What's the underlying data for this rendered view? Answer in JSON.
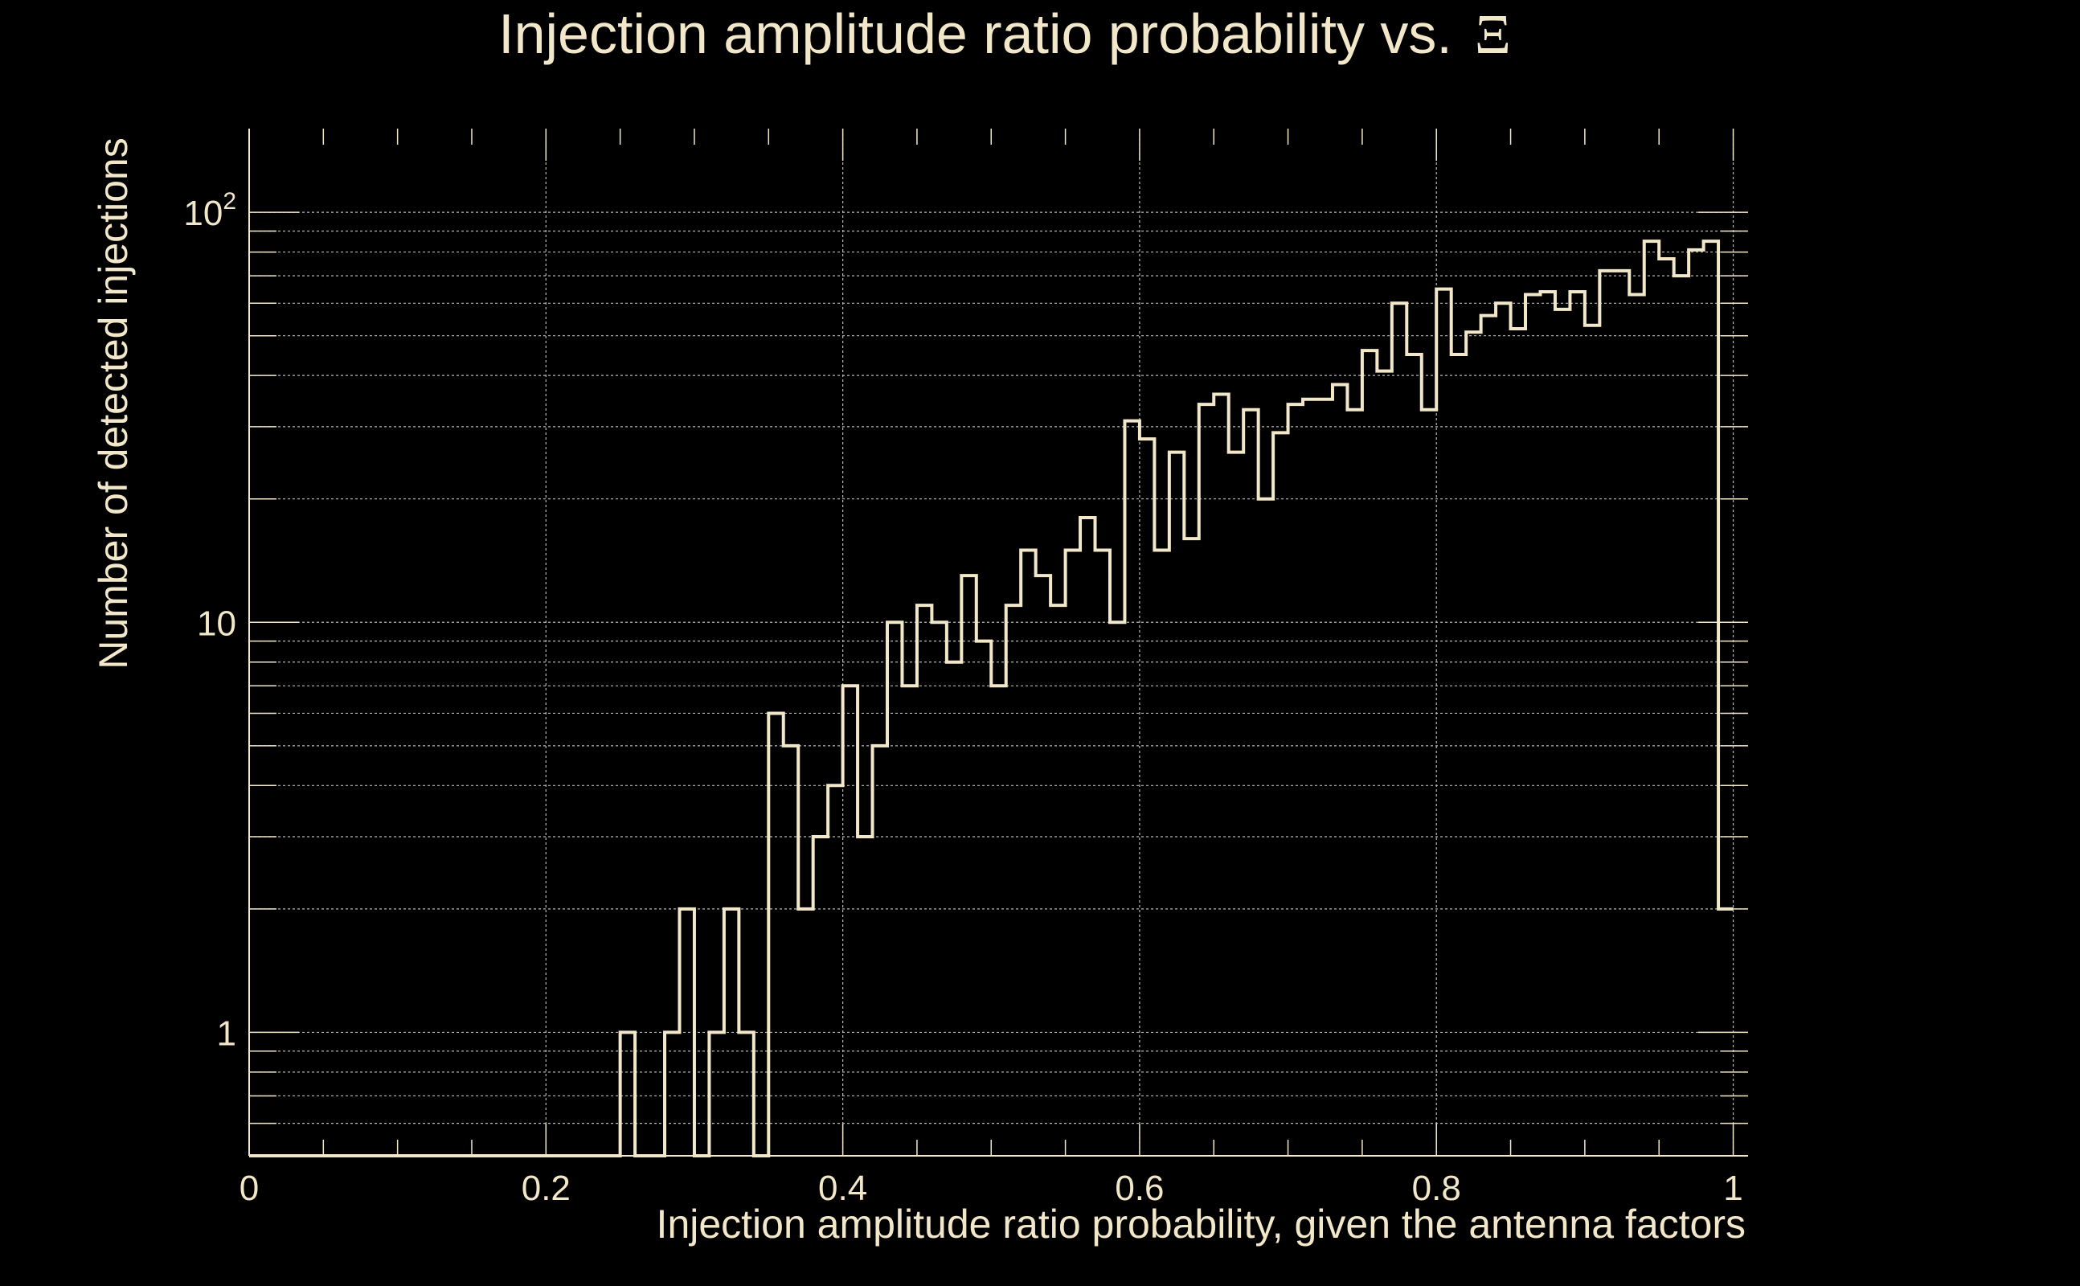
{
  "colors": {
    "background": "#000000",
    "foreground": "#f2e8c9",
    "grid": "#b8b8b8"
  },
  "chart_data": {
    "type": "histogram",
    "title": "Injection amplitude ratio probability vs.",
    "title_symbol": "Ξ",
    "xlabel": "Injection amplitude ratio probability, given the antenna factors",
    "ylabel": "Number of detected injections",
    "xlim": [
      0,
      1.01
    ],
    "ylim": [
      0.5,
      160
    ],
    "yscale": "log",
    "grid": true,
    "x_ticks": [
      {
        "value": 0,
        "label": "0"
      },
      {
        "value": 0.2,
        "label": "0.2"
      },
      {
        "value": 0.4,
        "label": "0.4"
      },
      {
        "value": 0.6,
        "label": "0.6"
      },
      {
        "value": 0.8,
        "label": "0.8"
      },
      {
        "value": 1,
        "label": "1"
      }
    ],
    "y_ticks": [
      {
        "value": 1,
        "label": "1",
        "exponent": ""
      },
      {
        "value": 10,
        "label": "10",
        "exponent": ""
      },
      {
        "value": 100,
        "label": "10",
        "exponent": "2"
      }
    ],
    "bin_edges_start": 0,
    "bin_width": 0.01,
    "counts": [
      0,
      0,
      0,
      0,
      0,
      0,
      0,
      0,
      0,
      0,
      0,
      0,
      0,
      0,
      0,
      0,
      0,
      0,
      0,
      0,
      0,
      0,
      0,
      0,
      0,
      1,
      0,
      0,
      1,
      2,
      0,
      1,
      2,
      1,
      0,
      6,
      5,
      2,
      3,
      4,
      7,
      3,
      5,
      10,
      7,
      11,
      10,
      8,
      13,
      9,
      7,
      11,
      15,
      13,
      11,
      15,
      18,
      15,
      10,
      31,
      28,
      15,
      26,
      16,
      34,
      36,
      26,
      33,
      20,
      29,
      34,
      35,
      35,
      38,
      33,
      46,
      41,
      60,
      45,
      33,
      65,
      45,
      51,
      56,
      60,
      52,
      63,
      64,
      58,
      64,
      53,
      72,
      72,
      63,
      85,
      77,
      70,
      81,
      85,
      2
    ]
  }
}
